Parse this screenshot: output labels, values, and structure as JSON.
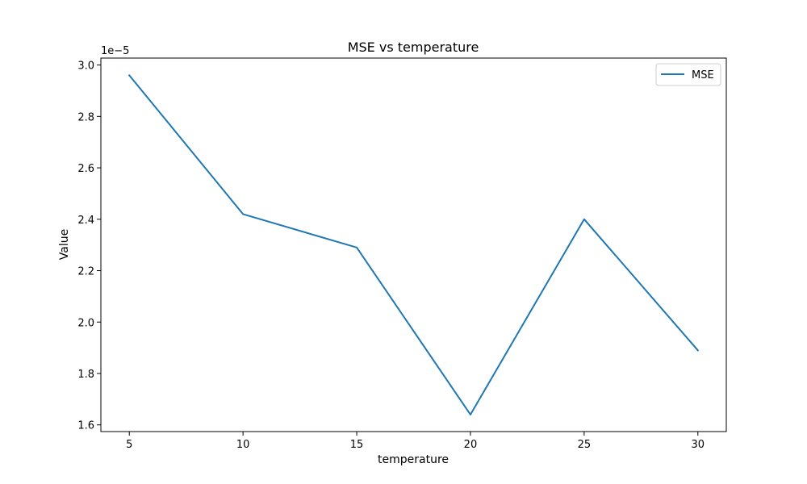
{
  "chart_data": {
    "type": "line",
    "title": "MSE vs temperature",
    "xlabel": "temperature",
    "ylabel": "Value",
    "y_scale_factor_label": "1e−5",
    "x": [
      5,
      10,
      15,
      20,
      25,
      30
    ],
    "x_ticks": [
      5,
      10,
      15,
      20,
      25,
      30
    ],
    "x_tick_labels": [
      "5",
      "10",
      "15",
      "20",
      "25",
      "30"
    ],
    "xlim": [
      3.75,
      31.25
    ],
    "y_ticks": [
      1.6,
      1.8,
      2.0,
      2.2,
      2.4,
      2.6,
      2.8,
      3.0
    ],
    "y_tick_labels": [
      "1.6",
      "1.8",
      "2.0",
      "2.2",
      "2.4",
      "2.6",
      "2.8",
      "3.0"
    ],
    "ylim": [
      1.574,
      3.027
    ],
    "series": [
      {
        "name": "MSE",
        "color": "#1f77b4",
        "values": [
          2.96,
          2.42,
          2.29,
          1.64,
          2.4,
          1.89
        ]
      }
    ],
    "legend": {
      "position": "top-right"
    },
    "grid": false
  }
}
